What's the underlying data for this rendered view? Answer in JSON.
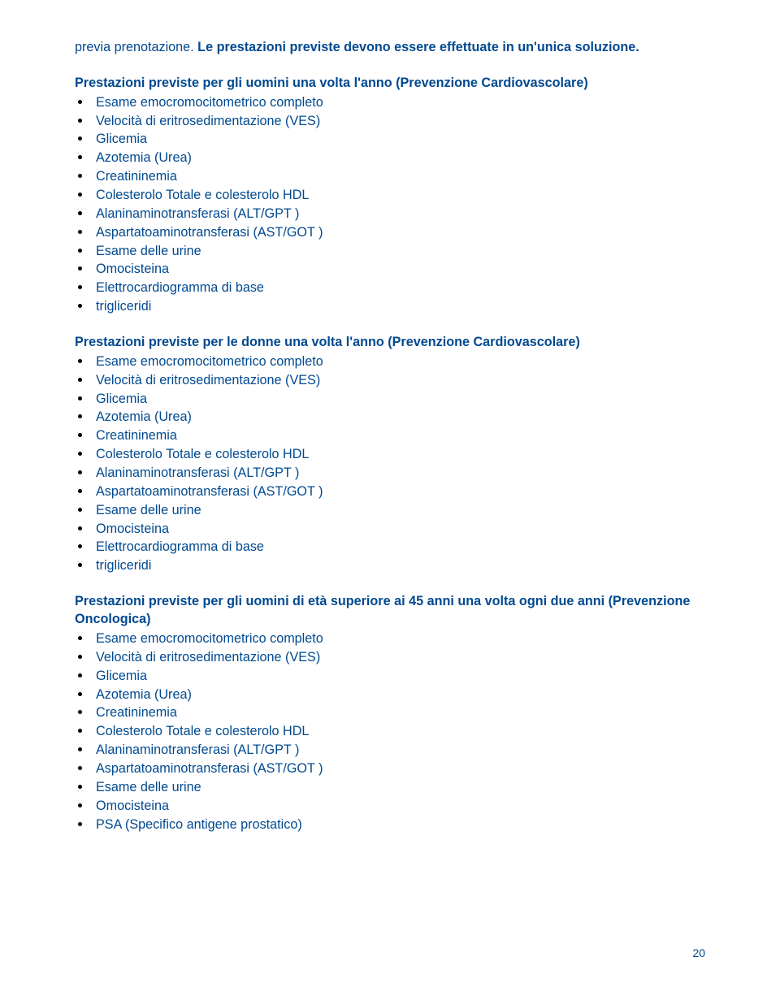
{
  "colors": {
    "text": "#004990",
    "bullet": "#000000",
    "background": "#ffffff"
  },
  "typography": {
    "font_family": "Trebuchet MS",
    "font_size_pt": 12,
    "line_height": 1.35,
    "heading_weight": "bold"
  },
  "page_number": "20",
  "intro": {
    "part1": "previa prenotazione.",
    "part2": " Le prestazioni previste devono essere effettuate in un'unica soluzione."
  },
  "sections": [
    {
      "heading": "Prestazioni previste per gli uomini una volta l'anno (Prevenzione Cardiovascolare)",
      "items": [
        "Esame emocromocitometrico completo",
        "Velocità di eritrosedimentazione (VES)",
        "Glicemia",
        "Azotemia (Urea)",
        "Creatininemia",
        "Colesterolo Totale e colesterolo HDL",
        "Alaninaminotransferasi (ALT/GPT )",
        "Aspartatoaminotransferasi (AST/GOT )",
        "Esame delle urine",
        "Omocisteina",
        "Elettrocardiogramma di base",
        "trigliceridi"
      ]
    },
    {
      "heading": "Prestazioni previste per le donne una volta l'anno (Prevenzione Cardiovascolare)",
      "items": [
        "Esame emocromocitometrico completo",
        "Velocità di eritrosedimentazione (VES)",
        "Glicemia",
        "Azotemia (Urea)",
        "Creatininemia",
        "Colesterolo Totale e colesterolo HDL",
        "Alaninaminotransferasi (ALT/GPT )",
        "Aspartatoaminotransferasi (AST/GOT )",
        "Esame delle urine",
        "Omocisteina",
        "Elettrocardiogramma di base",
        "trigliceridi"
      ]
    },
    {
      "heading": "Prestazioni previste per gli uomini di età superiore ai 45 anni una volta ogni due anni (Prevenzione Oncologica)",
      "items": [
        "Esame emocromocitometrico completo",
        "Velocità di eritrosedimentazione (VES)",
        "Glicemia",
        "Azotemia (Urea)",
        "Creatininemia",
        "Colesterolo Totale e colesterolo HDL",
        "Alaninaminotransferasi (ALT/GPT )",
        "Aspartatoaminotransferasi (AST/GOT )",
        "Esame delle urine",
        "Omocisteina",
        "PSA  (Specifico antigene prostatico)"
      ]
    }
  ]
}
